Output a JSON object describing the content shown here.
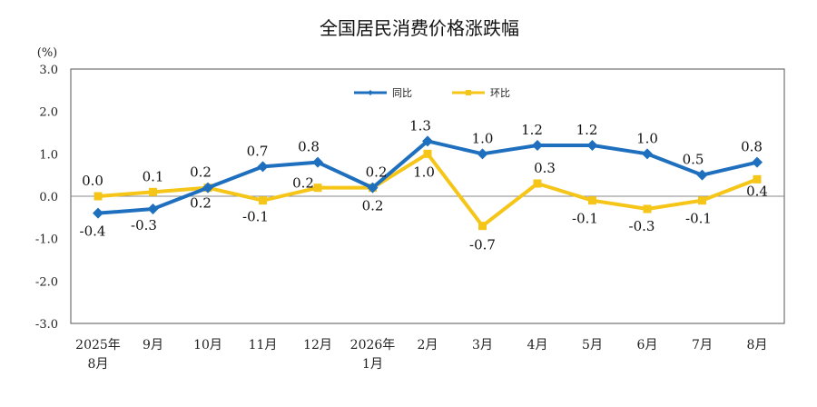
{
  "chart_data": {
    "type": "line",
    "title": "全国居民消费价格涨跌幅",
    "ylabel": "(%)",
    "ylim": [
      -3.0,
      3.0
    ],
    "yticks": [
      "3.0",
      "2.0",
      "1.0",
      "0.0",
      "-1.0",
      "-2.0",
      "-3.0"
    ],
    "grid": false,
    "legend_position": "top-center",
    "categories": [
      [
        "2025年",
        "8月"
      ],
      [
        "9月"
      ],
      [
        "10月"
      ],
      [
        "11月"
      ],
      [
        "12月"
      ],
      [
        "2026年",
        "1月"
      ],
      [
        "2月"
      ],
      [
        "3月"
      ],
      [
        "4月"
      ],
      [
        "5月"
      ],
      [
        "6月"
      ],
      [
        "7月"
      ],
      [
        "8月"
      ]
    ],
    "series": [
      {
        "name": "同比",
        "color": "#1f6fbf",
        "marker": "diamond",
        "values": [
          -0.4,
          -0.3,
          0.2,
          0.7,
          0.8,
          0.2,
          1.3,
          1.0,
          1.2,
          1.2,
          1.0,
          0.5,
          0.8
        ],
        "labels": [
          "-0.4",
          "-0.3",
          "0.2",
          "0.7",
          "0.8",
          "0.2",
          "1.3",
          "1.0",
          "1.2",
          "1.2",
          "1.0",
          "0.5",
          "0.8"
        ]
      },
      {
        "name": "环比",
        "color": "#f5c518",
        "marker": "square",
        "values": [
          0.0,
          0.1,
          0.2,
          -0.1,
          0.2,
          0.2,
          1.0,
          -0.7,
          0.3,
          -0.1,
          -0.3,
          -0.1,
          0.4
        ],
        "labels": [
          "0.0",
          "0.1",
          "0.2",
          "-0.1",
          "0.2",
          "0.2",
          "1.0",
          "-0.7",
          "0.3",
          "-0.1",
          "-0.3",
          "-0.1",
          "0.4"
        ]
      }
    ]
  }
}
